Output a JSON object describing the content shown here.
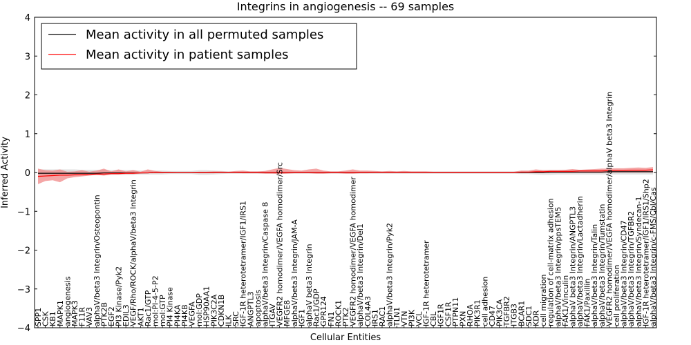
{
  "chart_data": {
    "type": "line",
    "title": "Integrins in angiogenesis -- 69 samples",
    "xlabel": "Cellular Entities",
    "ylabel": "Inferred Activity",
    "ylim": [
      -4,
      4
    ],
    "yticks": [
      -4,
      -3,
      -2,
      -1,
      0,
      1,
      2,
      3,
      4
    ],
    "ytick_labels": [
      "−4",
      "−3",
      "−2",
      "−1",
      "0",
      "1",
      "2",
      "3",
      "4"
    ],
    "grid": false,
    "legend_position": "top-left",
    "categories": [
      "SPP1",
      "CSK",
      "KB1",
      "MAPK1",
      "angiogenesis",
      "MAPK3",
      "F11R",
      "VAV3",
      "alphaV/beta3 Integrin/Osteopontin",
      "PTK2B",
      "EGF2",
      "PI3 Kinase/Pyk2",
      "EDIL3",
      "VEGF/Rho/ROCK/alphaV/beta3 Integrin",
      "AKT1",
      "Rac1/GTP",
      "mol:PI-4-5-P2",
      "mol:GTP",
      "PI4 Kinase",
      "PI4KA",
      "PI4KB",
      "VEGFA",
      "mol:GDP",
      "HSP90AA1",
      "PIK3C2A",
      "CDKN1B",
      "ILK",
      "SRC",
      "IGF-1R heterotetramer/IGF1/IRS1",
      "ANGPTL3",
      "apoptosis",
      "alphaV/beta3 Integrin/Caspase 8",
      "ITGAV",
      "VEGFR2 homodimer/VEGFA homodimer/Src",
      "MFGE8",
      "alphaV/beta3 Integrin/JAM-A",
      "IGF1",
      "alphaV beta3 Integrin",
      "Rac1/GDP",
      "GPR124",
      "FN1",
      "ROCK1",
      "PTK2",
      "VEGFR2 homodimer/VEGFA homodimer",
      "alphaV/beta3 Integrin/Del1",
      "COL4A3",
      "IRS1",
      "RAC1",
      "alphaV/beta3 Integrin/Pyk2",
      "TLN1",
      "VTN",
      "PI3K",
      "VCL",
      "IGF-1R heterotetramer",
      "CBL",
      "IGF1R",
      "CSF1R",
      "PTPN11",
      "PXN",
      "RHOA",
      "PIK3R1",
      "cell adhesion",
      "CD47",
      "PIK3CA",
      "TGFBR2",
      "ITGB3",
      "BCAR1",
      "SDC1",
      "KDR",
      "cell migration",
      "regulation of cell-matrix adhesion",
      "alphaV/beta3 Integrin/ppsTEM5",
      "FAK1/Vinculin",
      "alphaV beta3 Integrin/ANGPTL3",
      "alphaV/beta3 Integrin/Lactadherin",
      "FAK1/Paxillin",
      "alphaV/beta3 Integrin/Talin",
      "alphaV/beta3 Integrin/Tumstatin",
      "VEGFR2 homodimer/VEGFA homodimer/alphaV beta3 Integrin",
      "cell proliferation",
      "alphaV/beta3 Integrin/CD47",
      "alphaV/beta3 Integrin/TGFBR2",
      "alphaV/beta3 Integrin/Syndecan-1",
      "IGF-1R heterotetramer/IGF1/IRS1/Shp2",
      "alphaV/beta3 Integrin/c-FMS/Cbl/Cas"
    ],
    "series": [
      {
        "name": "Mean activity in all permuted samples",
        "color": "#000000",
        "values": [
          -0.02,
          -0.02,
          -0.02,
          -0.02,
          -0.02,
          -0.02,
          -0.02,
          -0.02,
          -0.02,
          -0.01,
          -0.01,
          -0.01,
          -0.01,
          -0.01,
          -0.01,
          -0.01,
          0,
          0,
          0,
          0,
          0,
          0,
          0,
          0,
          0,
          0,
          0,
          0,
          0,
          0,
          0,
          0,
          0,
          0,
          0,
          0,
          0,
          0,
          0,
          0,
          0,
          0,
          0,
          0,
          0,
          0,
          0,
          0,
          0,
          0,
          0,
          0,
          0,
          0,
          0,
          0,
          0,
          0,
          0,
          0,
          0,
          0,
          0,
          0,
          0,
          0,
          0,
          0,
          0,
          0,
          0.01,
          0.01,
          0.01,
          0.01,
          0.01,
          0.01,
          0.01,
          0.01,
          0.02,
          0.02,
          0.02,
          0.02,
          0.02,
          0.02,
          0.02
        ],
        "band": {
          "color": "#d9d9d9",
          "lower": [
            -0.08,
            -0.08,
            -0.08,
            -0.08,
            -0.08,
            -0.08,
            -0.07,
            -0.07,
            -0.07,
            -0.07,
            -0.06,
            -0.06,
            -0.06,
            -0.06,
            -0.05,
            -0.05,
            -0.05,
            -0.05,
            -0.04,
            -0.04,
            -0.04,
            -0.04,
            -0.06,
            -0.06,
            -0.05,
            -0.04,
            -0.03,
            -0.03,
            -0.03,
            -0.03,
            -0.03,
            -0.03,
            -0.03,
            -0.03,
            -0.03,
            -0.03,
            -0.03,
            -0.03,
            -0.03,
            -0.03,
            -0.03,
            -0.03,
            -0.03,
            -0.03,
            -0.03,
            -0.03,
            -0.03,
            -0.03,
            -0.03,
            -0.03,
            -0.03,
            -0.03,
            -0.03,
            -0.03,
            -0.03,
            -0.03,
            -0.03,
            -0.03,
            -0.03,
            -0.03,
            -0.03,
            -0.03,
            -0.03,
            -0.03,
            -0.03,
            -0.03,
            -0.04,
            -0.04,
            -0.05,
            -0.06,
            -0.06,
            -0.05,
            -0.05,
            -0.05,
            -0.05,
            -0.05,
            -0.05,
            -0.05,
            -0.05,
            -0.05,
            -0.05,
            -0.05,
            -0.05,
            -0.05,
            -0.05
          ],
          "upper": [
            0.08,
            0.08,
            0.08,
            0.08,
            0.08,
            0.08,
            0.07,
            0.07,
            0.07,
            0.07,
            0.06,
            0.06,
            0.06,
            0.06,
            0.05,
            0.05,
            0.05,
            0.05,
            0.04,
            0.04,
            0.04,
            0.04,
            0.06,
            0.06,
            0.05,
            0.04,
            0.03,
            0.03,
            0.03,
            0.03,
            0.03,
            0.03,
            0.03,
            0.03,
            0.03,
            0.03,
            0.03,
            0.03,
            0.03,
            0.03,
            0.03,
            0.03,
            0.03,
            0.03,
            0.03,
            0.03,
            0.03,
            0.03,
            0.03,
            0.03,
            0.03,
            0.03,
            0.03,
            0.03,
            0.03,
            0.03,
            0.03,
            0.03,
            0.03,
            0.03,
            0.03,
            0.03,
            0.03,
            0.03,
            0.03,
            0.03,
            0.04,
            0.04,
            0.05,
            0.06,
            0.07,
            0.07,
            0.07,
            0.07,
            0.07,
            0.07,
            0.07,
            0.07,
            0.07,
            0.07,
            0.07,
            0.07,
            0.07,
            0.07,
            0.07
          ]
        }
      },
      {
        "name": "Mean activity in patient samples",
        "color": "#ff0000",
        "values": [
          -0.1,
          -0.09,
          -0.08,
          -0.07,
          -0.07,
          -0.06,
          -0.06,
          -0.05,
          -0.04,
          -0.04,
          -0.03,
          -0.03,
          -0.02,
          -0.02,
          -0.01,
          -0.01,
          0,
          0,
          0,
          0,
          0,
          0,
          0,
          0,
          0,
          0,
          0,
          0,
          0,
          0,
          0,
          0,
          0,
          0,
          0,
          0,
          0,
          0,
          0,
          0,
          0,
          0,
          0,
          0,
          0,
          0,
          0,
          0,
          0,
          0,
          0,
          0,
          0,
          0,
          0,
          0,
          0,
          0,
          0,
          0,
          0,
          0,
          0,
          0,
          0,
          0,
          0.01,
          0.01,
          0.02,
          0.02,
          0.03,
          0.03,
          0.03,
          0.03,
          0.04,
          0.04,
          0.04,
          0.04,
          0.05,
          0.05,
          0.05,
          0.06,
          0.06,
          0.06,
          0.07
        ],
        "band": {
          "color": "#f08080",
          "lower": [
            -0.3,
            -0.22,
            -0.2,
            -0.25,
            -0.15,
            -0.12,
            -0.1,
            -0.08,
            -0.06,
            -0.08,
            -0.05,
            -0.05,
            -0.04,
            -0.04,
            -0.03,
            -0.02,
            -0.02,
            -0.02,
            -0.01,
            -0.01,
            -0.01,
            -0.01,
            -0.02,
            -0.02,
            -0.02,
            -0.01,
            -0.01,
            -0.01,
            -0.02,
            -0.02,
            -0.02,
            -0.03,
            -0.03,
            -0.04,
            -0.03,
            -0.02,
            -0.02,
            -0.02,
            -0.03,
            -0.03,
            -0.02,
            -0.02,
            -0.03,
            -0.03,
            -0.02,
            -0.02,
            -0.01,
            -0.01,
            -0.01,
            -0.01,
            -0.01,
            -0.01,
            -0.01,
            -0.01,
            -0.01,
            -0.01,
            -0.01,
            -0.01,
            -0.01,
            -0.01,
            -0.01,
            -0.01,
            -0.01,
            -0.01,
            -0.01,
            -0.01,
            -0.01,
            -0.01,
            -0.01,
            -0.01,
            -0.01,
            -0.01,
            -0.01,
            -0.01,
            -0.01,
            -0.01,
            -0.01,
            -0.01,
            0,
            0,
            0,
            0,
            0,
            0,
            0
          ],
          "upper": [
            0.1,
            0.06,
            0.05,
            0.08,
            0.02,
            0.03,
            0.06,
            0.02,
            0.05,
            0.1,
            0.03,
            0.08,
            0.03,
            0.06,
            0.02,
            0.08,
            0.04,
            0.02,
            0.02,
            0.01,
            0.01,
            0.01,
            0.02,
            0.02,
            0.03,
            0.03,
            0.02,
            0.04,
            0.05,
            0.03,
            0.03,
            0.04,
            0.08,
            0.12,
            0.09,
            0.06,
            0.05,
            0.08,
            0.1,
            0.05,
            0.03,
            0.03,
            0.05,
            0.08,
            0.05,
            0.05,
            0.04,
            0.03,
            0.04,
            0.03,
            0.04,
            0.03,
            0.03,
            0.03,
            0.02,
            0.02,
            0.02,
            0.02,
            0.02,
            0.02,
            0.02,
            0.02,
            0.02,
            0.02,
            0.02,
            0.02,
            0.05,
            0.05,
            0.08,
            0.06,
            0.06,
            0.06,
            0.07,
            0.09,
            0.07,
            0.08,
            0.09,
            0.1,
            0.1,
            0.11,
            0.11,
            0.12,
            0.13,
            0.12,
            0.14
          ]
        }
      }
    ]
  }
}
